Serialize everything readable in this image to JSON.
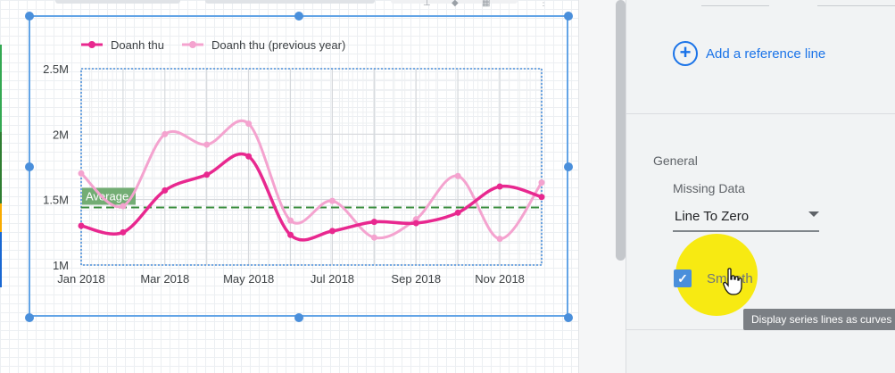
{
  "chart_data": {
    "type": "line",
    "categories": [
      "Jan 2018",
      "Feb 2018",
      "Mar 2018",
      "Apr 2018",
      "May 2018",
      "Jun 2018",
      "Jul 2018",
      "Aug 2018",
      "Sep 2018",
      "Oct 2018",
      "Nov 2018",
      "Dec 2018"
    ],
    "xticks": [
      "Jan 2018",
      "Mar 2018",
      "May 2018",
      "Jul 2018",
      "Sep 2018",
      "Nov 2018"
    ],
    "yticks": [
      "1M",
      "1.5M",
      "2M",
      "2.5M"
    ],
    "ylim": [
      1000000,
      2500000
    ],
    "series": [
      {
        "name": "Doanh thu",
        "color": "#e8288f",
        "values": [
          1300000,
          1250000,
          1570000,
          1690000,
          1830000,
          1230000,
          1260000,
          1330000,
          1320000,
          1400000,
          1600000,
          1520000
        ]
      },
      {
        "name": "Doanh thu (previous year)",
        "color": "#f4a3cf",
        "values": [
          1700000,
          1450000,
          2000000,
          1920000,
          2080000,
          1340000,
          1490000,
          1210000,
          1350000,
          1680000,
          1200000,
          1630000
        ]
      }
    ],
    "reference_line": {
      "label": "Average",
      "value": 1440000,
      "color": "#3b8d3f"
    },
    "legend_position": "top-left",
    "grid": true,
    "smooth": true
  },
  "panel": {
    "add_reference_line": "Add a reference line",
    "general_title": "General",
    "missing_data_label": "Missing Data",
    "missing_data_value": "Line To Zero",
    "smooth_label": "Smooth",
    "smooth_checked": true,
    "tooltip": "Display series lines as curves"
  },
  "icons": {
    "add": "plus-circle-icon",
    "dropdown": "caret-down-icon",
    "cursor": "hand-pointer-icon"
  },
  "colors": {
    "accent": "#1a73e8",
    "selection": "#4a8fdb",
    "highlight": "#f8e800"
  }
}
